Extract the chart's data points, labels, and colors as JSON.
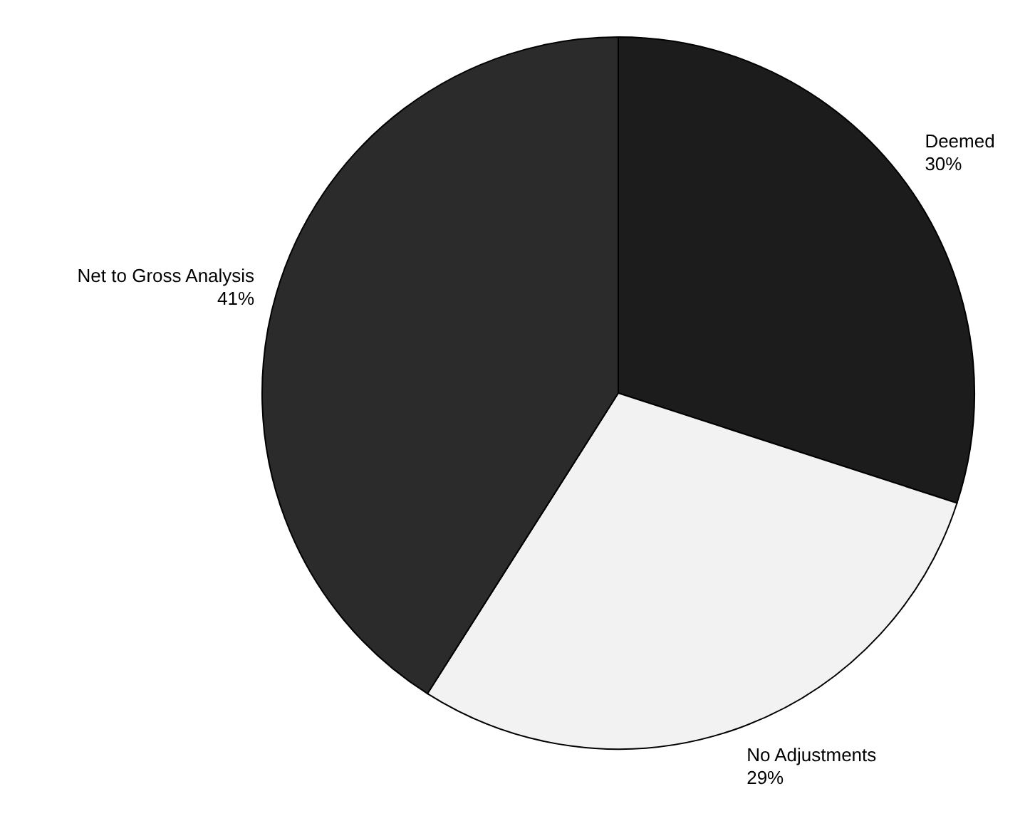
{
  "chart_data": {
    "type": "pie",
    "categories": [
      "Deemed",
      "No Adjustments",
      "Net to Gross Analysis"
    ],
    "values": [
      30,
      29,
      41
    ],
    "colors": [
      "#1c1c1c",
      "#f2f2f2",
      "#2b2b2b"
    ],
    "value_labels": [
      "30%",
      "29%",
      "41%"
    ],
    "legend": false
  }
}
